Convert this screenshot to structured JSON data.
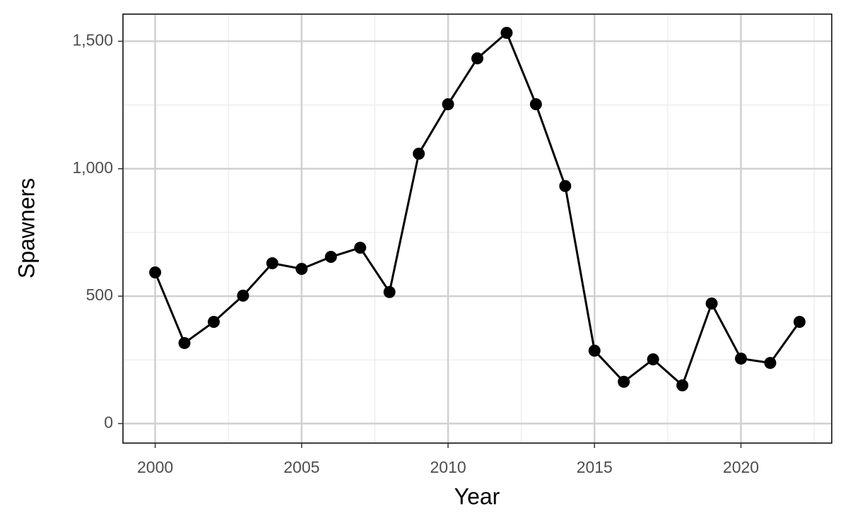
{
  "chart_data": {
    "type": "line",
    "x_label": "Year",
    "y_label": "Spawners",
    "x": [
      2000,
      2001,
      2002,
      2003,
      2004,
      2005,
      2006,
      2007,
      2008,
      2009,
      2010,
      2011,
      2012,
      2013,
      2014,
      2015,
      2016,
      2017,
      2018,
      2019,
      2020,
      2021,
      2022
    ],
    "series": [
      {
        "color": "#000000",
        "values": [
          593,
          316,
          399,
          502,
          629,
          607,
          654,
          690,
          516,
          1059,
          1253,
          1433,
          1533,
          1253,
          932,
          286,
          164,
          252,
          150,
          471,
          255,
          238,
          399
        ]
      }
    ],
    "xlim": [
      1998.9,
      2023.1
    ],
    "xticks": [
      2000,
      2005,
      2010,
      2015,
      2020
    ],
    "xminor": [
      2002.5,
      2007.5,
      2012.5,
      2017.5,
      2022.5
    ],
    "ylim": [
      -76.5,
      1606.5
    ],
    "yticks": [
      0,
      500,
      {
        "value": 1000,
        "label": "1,000"
      },
      {
        "value": 1500,
        "label": "1,500"
      }
    ],
    "yminor": [
      250,
      750,
      1250
    ],
    "grid": true,
    "markers": true
  }
}
